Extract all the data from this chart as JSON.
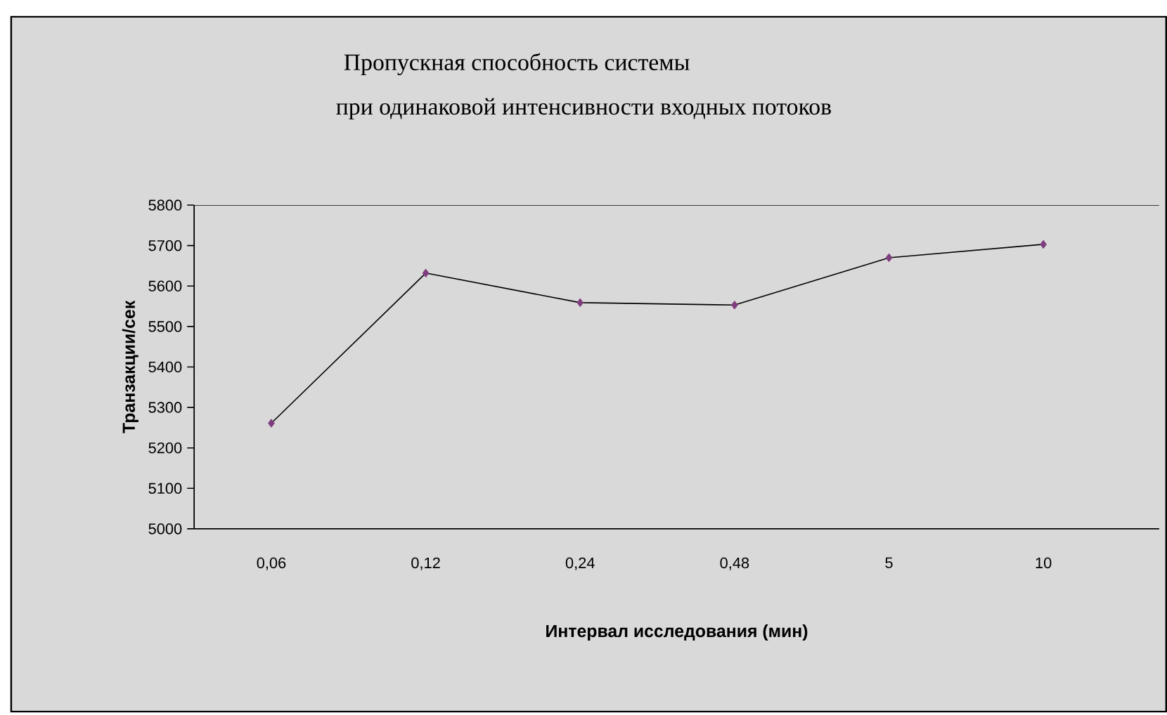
{
  "chart_data": {
    "type": "line",
    "title": "Пропускная способность системы",
    "subtitle": "при одинаковой интенсивности входных потоков",
    "xlabel": "Интервал исследования (мин)",
    "ylabel": "Транзакции/сек",
    "categories": [
      "0,06",
      "0,12",
      "0,24",
      "0,48",
      "5",
      "10"
    ],
    "series": [
      {
        "color": "#7f3f7f",
        "values": [
          5261,
          5632,
          5559,
          5553,
          5670,
          5703
        ]
      }
    ],
    "ylim": [
      5000,
      5800
    ],
    "yticks": [
      5000,
      5100,
      5200,
      5300,
      5400,
      5500,
      5600,
      5700,
      5800
    ],
    "marker": "diamond",
    "line_style": "solid",
    "grid": false
  }
}
